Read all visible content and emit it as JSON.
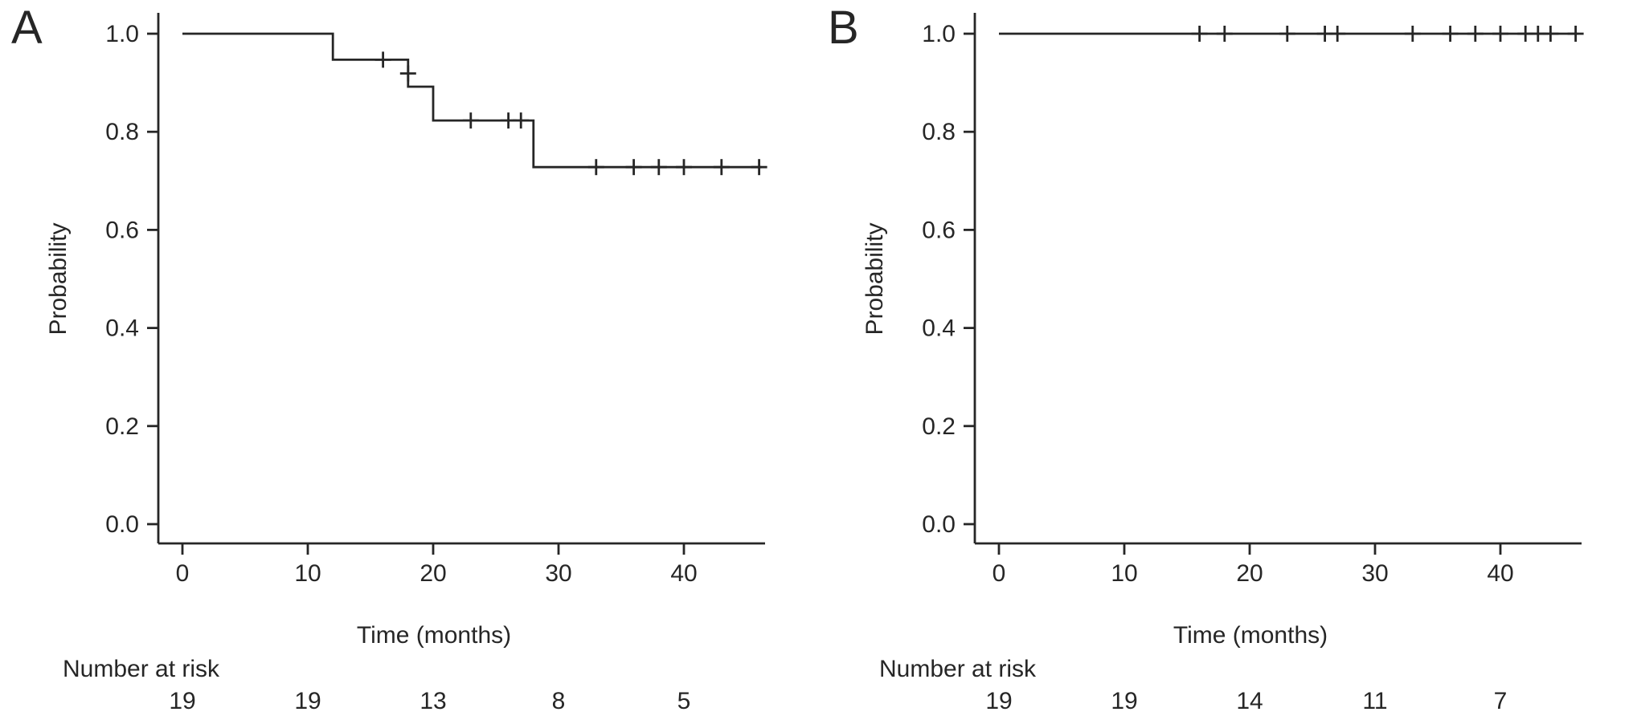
{
  "colors": {
    "line": "#262626",
    "background": "#ffffff"
  },
  "chart_data": [
    {
      "panel_label": "A",
      "type": "line",
      "subtype": "kaplan-meier-step",
      "title": "",
      "xlabel": "Time (months)",
      "ylabel": "Probability",
      "yticklabels": [
        "1.0",
        "0.8",
        "0.6",
        "0.4",
        "0.2",
        "0.0"
      ],
      "ytick_values": [
        1.0,
        0.8,
        0.6,
        0.4,
        0.2,
        0.0
      ],
      "xticks": [
        0,
        10,
        20,
        30,
        40
      ],
      "xlim": [
        0,
        47
      ],
      "ylim": [
        0.0,
        1.0
      ],
      "grid": "off",
      "legend": "none",
      "end_time": 46.2,
      "steps": [
        [
          0,
          1.0
        ],
        [
          12,
          0.947
        ],
        [
          18,
          0.892
        ],
        [
          20,
          0.823
        ],
        [
          28,
          0.728
        ]
      ],
      "censors": [
        [
          16,
          0.947
        ],
        [
          18,
          0.919
        ],
        [
          23,
          0.823
        ],
        [
          26,
          0.823
        ],
        [
          27,
          0.823
        ],
        [
          33,
          0.728
        ],
        [
          36,
          0.728
        ],
        [
          38,
          0.728
        ],
        [
          40,
          0.728
        ],
        [
          43,
          0.728
        ],
        [
          46,
          0.728
        ]
      ],
      "number_at_risk": {
        "label": "Number at risk",
        "times": [
          0,
          10,
          20,
          30,
          40
        ],
        "counts": [
          19,
          19,
          13,
          8,
          5
        ]
      }
    },
    {
      "panel_label": "B",
      "type": "line",
      "subtype": "kaplan-meier-step",
      "title": "",
      "xlabel": "Time (months)",
      "ylabel": "Probability",
      "yticklabels": [
        "1.0",
        "0.8",
        "0.6",
        "0.4",
        "0.2",
        "0.0"
      ],
      "ytick_values": [
        1.0,
        0.8,
        0.6,
        0.4,
        0.2,
        0.0
      ],
      "xticks": [
        0,
        10,
        20,
        30,
        40
      ],
      "xlim": [
        0,
        47
      ],
      "ylim": [
        0.0,
        1.0
      ],
      "grid": "off",
      "legend": "none",
      "end_time": 46.2,
      "steps": [
        [
          0,
          1.0
        ]
      ],
      "censors": [
        [
          16,
          1.0
        ],
        [
          18,
          1.0
        ],
        [
          23,
          1.0
        ],
        [
          26,
          1.0
        ],
        [
          27,
          1.0
        ],
        [
          33,
          1.0
        ],
        [
          36,
          1.0
        ],
        [
          38,
          1.0
        ],
        [
          40,
          1.0
        ],
        [
          42,
          1.0
        ],
        [
          43,
          1.0
        ],
        [
          44,
          1.0
        ],
        [
          46,
          1.0
        ]
      ],
      "number_at_risk": {
        "label": "Number at risk",
        "times": [
          0,
          10,
          20,
          30,
          40
        ],
        "counts": [
          19,
          19,
          14,
          11,
          7
        ]
      }
    }
  ]
}
